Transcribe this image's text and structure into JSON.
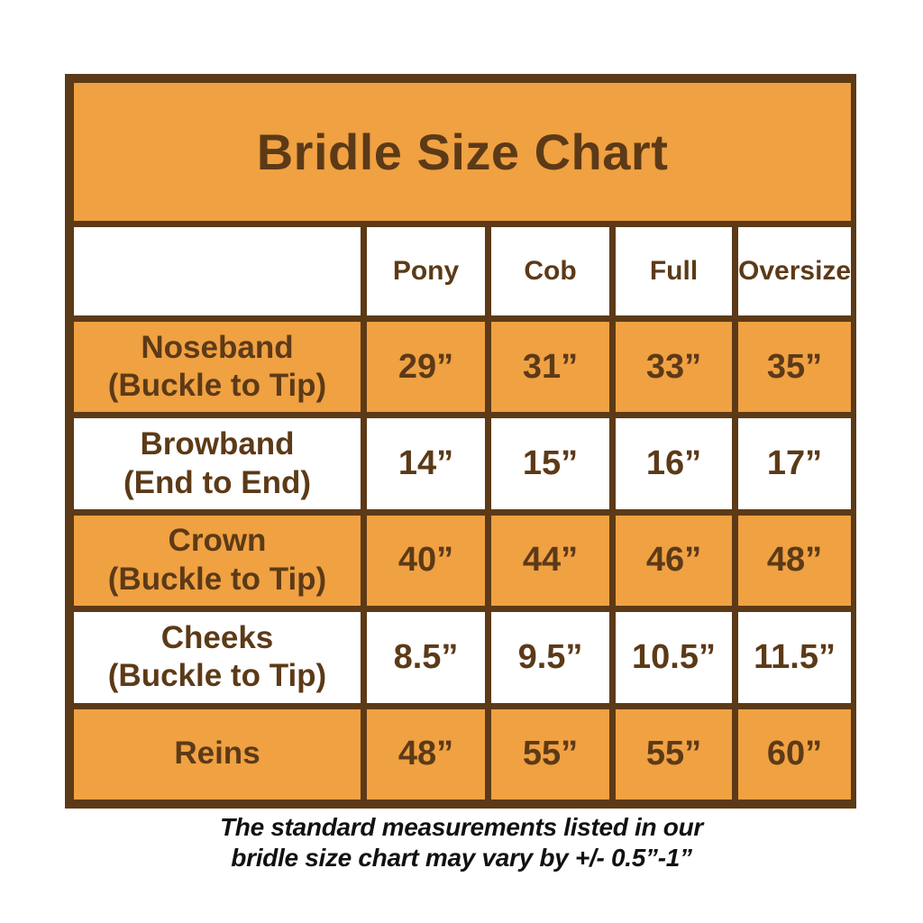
{
  "colors": {
    "orange": "#F0A142",
    "brown": "#5C3A17",
    "white": "#FFFFFF",
    "footer_text": "#111111"
  },
  "chart_data": {
    "type": "table",
    "title": "Bridle Size Chart",
    "columns": [
      "",
      "Pony",
      "Cob",
      "Full",
      "Oversize"
    ],
    "rows": [
      {
        "label_line1": "Noseband",
        "label_line2": "(Buckle to Tip)",
        "values": [
          "29”",
          "31”",
          "33”",
          "35”"
        ],
        "shaded": true
      },
      {
        "label_line1": "Browband",
        "label_line2": "(End to End)",
        "values": [
          "14”",
          "15”",
          "16”",
          "17”"
        ],
        "shaded": false
      },
      {
        "label_line1": "Crown",
        "label_line2": "(Buckle to Tip)",
        "values": [
          "40”",
          "44”",
          "46”",
          "48”"
        ],
        "shaded": true
      },
      {
        "label_line1": "Cheeks",
        "label_line2": "(Buckle to Tip)",
        "values": [
          "8.5”",
          "9.5”",
          "10.5”",
          "11.5”"
        ],
        "shaded": false
      },
      {
        "label_line1": "Reins",
        "label_line2": "",
        "values": [
          "48”",
          "55”",
          "55”",
          "60”"
        ],
        "shaded": true
      }
    ],
    "footer": {
      "line1": "The standard measurements listed in our",
      "line2": "bridle size chart may vary by +/- 0.5”-1”"
    }
  }
}
